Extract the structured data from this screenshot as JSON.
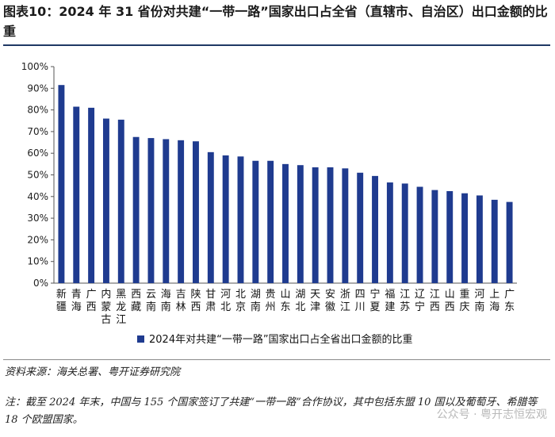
{
  "title": "图表10：2024 年 31 省份对共建“一带一路”国家出口占全省（直辖市、自治区）出口金额的比重",
  "source": "资料来源：海关总署、粤开证券研究院",
  "note": "注：截至 2024 年末，中国与 155 个国家签订了共建“一带一路”合作协议，其中包括东盟 10 国以及葡萄牙、希腊等 18 个欧盟国家。",
  "watermark": "公众号 · 粤开志恒宏观",
  "colors": {
    "bar": "#1f3b8f",
    "axis": "#555555",
    "rule": "#1f3864"
  },
  "chart_data": {
    "type": "bar",
    "title": "",
    "xlabel": "",
    "ylabel": "",
    "ylim": [
      0,
      100
    ],
    "y_ticks": [
      "0%",
      "10%",
      "20%",
      "30%",
      "40%",
      "50%",
      "60%",
      "70%",
      "80%",
      "90%",
      "100%"
    ],
    "legend": "2024年对共建“一带一路”国家出口占全省出口金额的比重",
    "legend_position": "bottom",
    "categories": [
      "新疆",
      "青海",
      "广西",
      "内蒙古",
      "黑龙江",
      "西藏",
      "云南",
      "海南",
      "吉林",
      "陕西",
      "甘肃",
      "河北",
      "北京",
      "湖南",
      "贵州",
      "山东",
      "湖北",
      "天津",
      "安徽",
      "浙江",
      "四川",
      "宁夏",
      "福建",
      "江苏",
      "辽宁",
      "江西",
      "山西",
      "重庆",
      "河南",
      "上海",
      "广东"
    ],
    "values": [
      91.5,
      81.5,
      81,
      76,
      75.5,
      67.5,
      67,
      66.5,
      66,
      65.5,
      60.5,
      59,
      58.5,
      56.5,
      56.5,
      55,
      54.5,
      53.5,
      53.5,
      53,
      51,
      49.5,
      46.5,
      46,
      44.5,
      43,
      42.5,
      41.5,
      40.5,
      38.5,
      37.5
    ]
  }
}
